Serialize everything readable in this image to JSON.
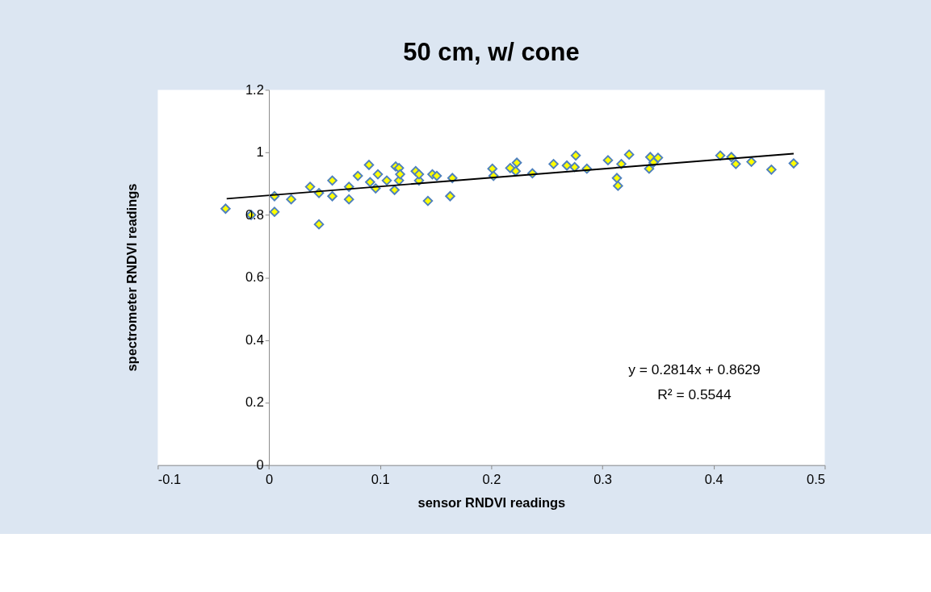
{
  "chart_data": {
    "type": "scatter",
    "title": "50 cm, w/ cone",
    "xlabel": "sensor RNDVI readings",
    "ylabel": "spectrometer RNDVI readings",
    "xlim": [
      -0.1,
      0.5
    ],
    "xticks": [
      -0.1,
      0,
      0.1,
      0.2,
      0.3,
      0.4,
      0.5
    ],
    "ylim": [
      0,
      1.2
    ],
    "yticks": [
      0,
      0.2,
      0.4,
      0.6,
      0.8,
      1,
      1.2
    ],
    "grid": false,
    "annotations": [
      "y = 0.2814x + 0.8629",
      "R² = 0.5544"
    ],
    "series": [
      {
        "color": "#ffff00",
        "marker": "diamond",
        "x": [
          -0.039,
          -0.016,
          0.005,
          0.005,
          0.02,
          0.037,
          0.045,
          0.045,
          0.057,
          0.057,
          0.072,
          0.072,
          0.08,
          0.09,
          0.091,
          0.096,
          0.098,
          0.106,
          0.113,
          0.114,
          0.117,
          0.117,
          0.118,
          0.132,
          0.135,
          0.135,
          0.143,
          0.147,
          0.151,
          0.163,
          0.165,
          0.201,
          0.202,
          0.217,
          0.222,
          0.223,
          0.237,
          0.256,
          0.268,
          0.275,
          0.276,
          0.286,
          0.305,
          0.313,
          0.314,
          0.317,
          0.324,
          0.343,
          0.346,
          0.342,
          0.35,
          0.406,
          0.416,
          0.42,
          0.434,
          0.452,
          0.472
        ],
        "values": [
          0.82,
          0.8,
          0.86,
          0.81,
          0.85,
          0.89,
          0.87,
          0.77,
          0.91,
          0.86,
          0.89,
          0.85,
          0.925,
          0.96,
          0.905,
          0.885,
          0.93,
          0.91,
          0.88,
          0.955,
          0.91,
          0.95,
          0.93,
          0.94,
          0.91,
          0.93,
          0.845,
          0.93,
          0.925,
          0.86,
          0.918,
          0.948,
          0.925,
          0.95,
          0.94,
          0.967,
          0.933,
          0.963,
          0.958,
          0.953,
          0.99,
          0.948,
          0.975,
          0.918,
          0.893,
          0.963,
          0.993,
          0.985,
          0.968,
          0.948,
          0.983,
          0.99,
          0.985,
          0.963,
          0.97,
          0.945,
          0.965
        ]
      },
      {
        "type": "line",
        "color": "#000000",
        "line_style": "solid",
        "marker": "none",
        "x": [
          -0.038,
          0.472
        ],
        "values": [
          0.852,
          0.996
        ]
      }
    ]
  }
}
